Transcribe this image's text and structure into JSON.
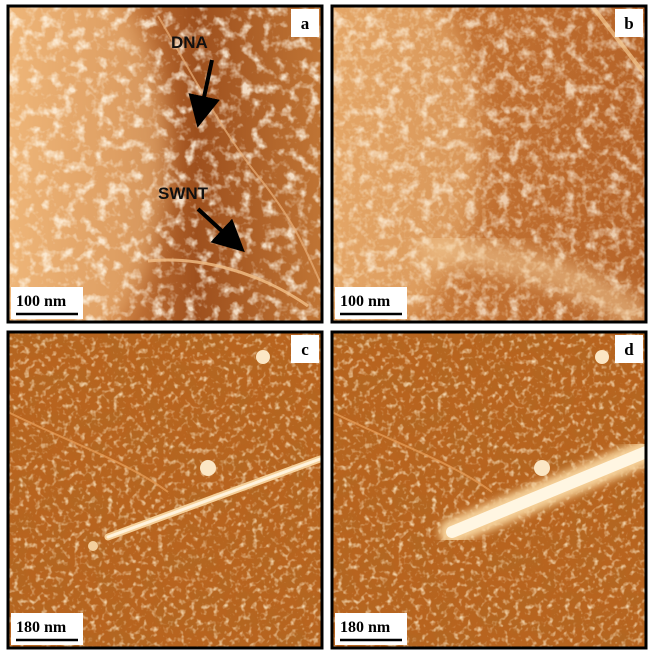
{
  "panels": [
    {
      "label": "a",
      "scale_bar": "100 nm",
      "annotations": [
        "DNA",
        "SWNT"
      ]
    },
    {
      "label": "b",
      "scale_bar": "100 nm"
    },
    {
      "label": "c",
      "scale_bar": "180 nm"
    },
    {
      "label": "d",
      "scale_bar": "180 nm"
    }
  ]
}
